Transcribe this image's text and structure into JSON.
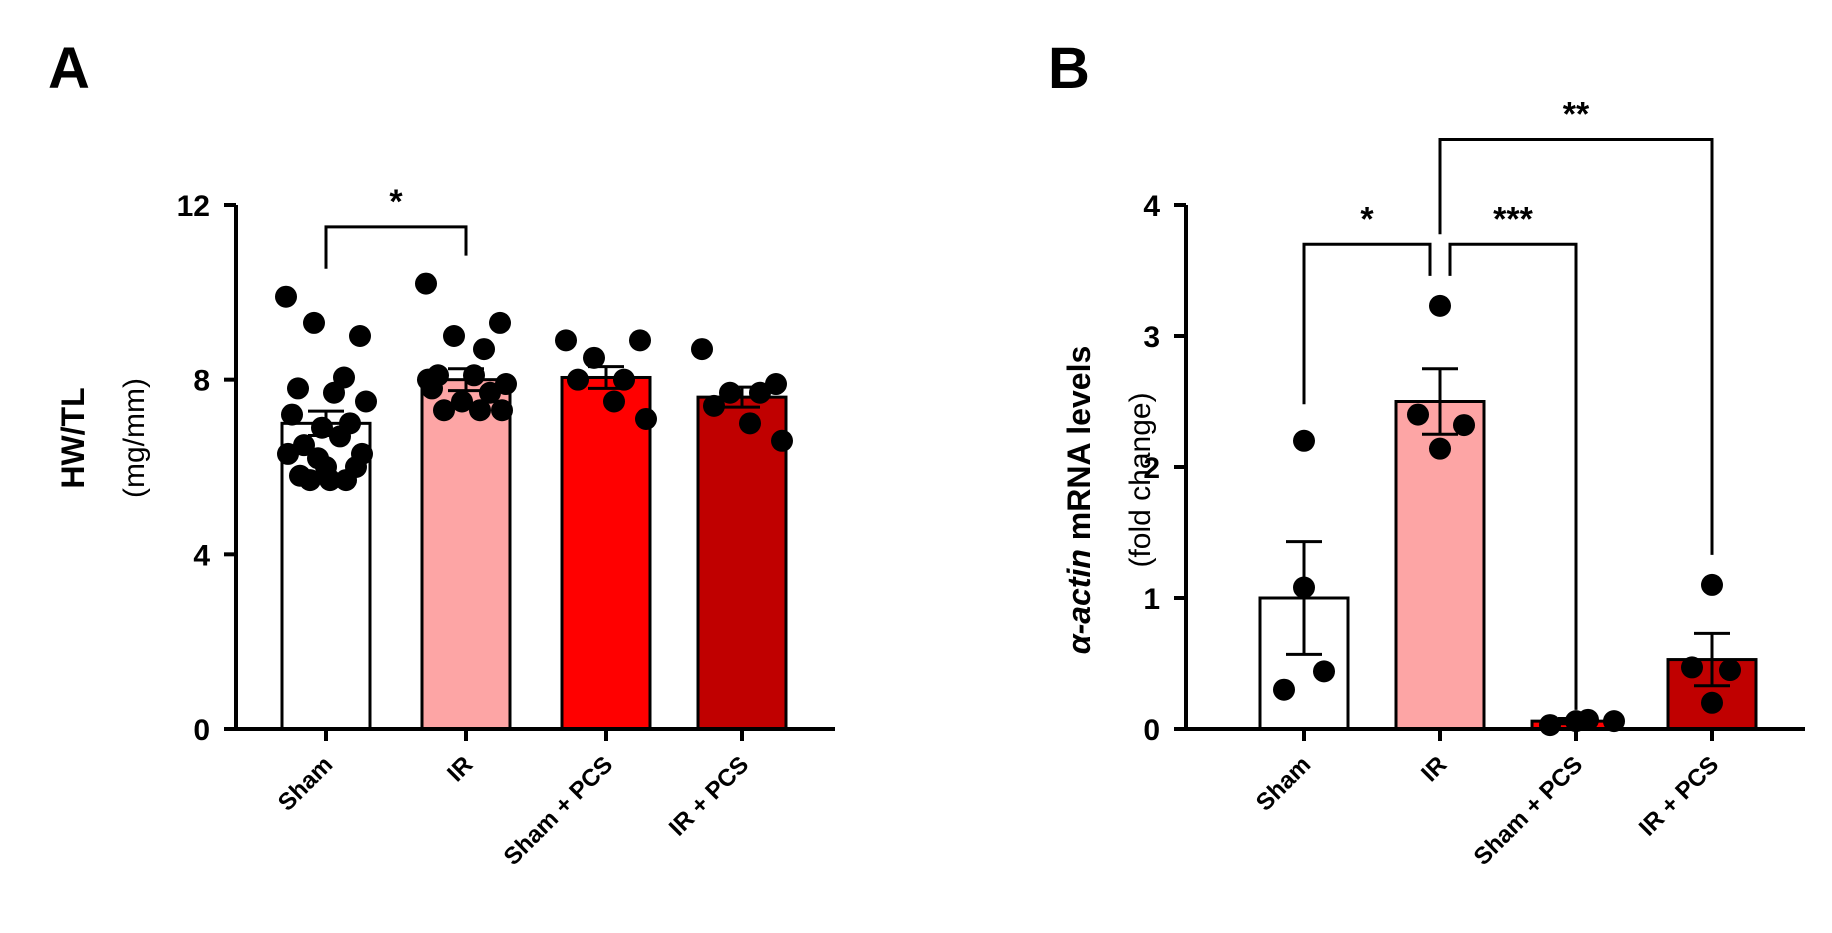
{
  "chart_data": [
    {
      "panel": "A",
      "type": "bar",
      "categories": [
        "Sham",
        "IR",
        "Sham + PCS",
        "IR + PCS"
      ],
      "values": [
        7.0,
        8.0,
        8.05,
        7.6
      ],
      "sem": [
        0.28,
        0.25,
        0.25,
        0.23
      ],
      "bar_colors": [
        "#ffffff",
        "#fda5a5",
        "#ff0000",
        "#c00000"
      ],
      "points": [
        [
          9.9,
          9.0,
          9.3,
          8.05,
          7.8,
          7.7,
          7.5,
          7.2,
          7.0,
          6.9,
          6.7,
          6.5,
          6.3,
          6.3,
          6.2,
          6.0,
          5.8,
          5.7,
          5.7,
          5.7,
          6.0
        ],
        [
          10.2,
          9.3,
          9.0,
          8.7,
          8.1,
          8.1,
          7.9,
          7.8,
          7.7,
          7.5,
          7.3,
          7.3,
          7.3,
          8.0
        ],
        [
          8.9,
          8.9,
          8.5,
          8.0,
          8.0,
          7.5,
          7.1
        ],
        [
          8.7,
          7.9,
          7.7,
          7.7,
          7.4,
          7.0,
          6.6
        ]
      ],
      "ylabel_bold": "HW/TL",
      "ylabel_unit": "(mg/mm)",
      "ylim": [
        0,
        12
      ],
      "yticks": [
        "0",
        "4",
        "8",
        "12"
      ],
      "ytick_values": [
        0,
        4,
        8,
        12
      ],
      "significance": [
        {
          "from": 0,
          "to": 1,
          "label": "*",
          "level": 11.5
        }
      ]
    },
    {
      "panel": "B",
      "type": "bar",
      "categories": [
        "Sham",
        "IR",
        "Sham + PCS",
        "IR + PCS"
      ],
      "values": [
        1.0,
        2.5,
        0.06,
        0.53
      ],
      "sem": [
        0.43,
        0.25,
        0.02,
        0.2
      ],
      "bar_colors": [
        "#ffffff",
        "#fda5a5",
        "#ff0000",
        "#c00000"
      ],
      "points": [
        [
          2.2,
          1.08,
          0.44,
          0.3
        ],
        [
          3.23,
          2.4,
          2.32,
          2.14
        ],
        [
          0.03,
          0.07,
          0.06,
          0.06
        ],
        [
          1.1,
          0.47,
          0.45,
          0.2
        ]
      ],
      "ylabel_italic": "α-actin",
      "ylabel_bold": " mRNA levels",
      "ylabel_unit": "(fold change)",
      "ylim": [
        0,
        4
      ],
      "yticks": [
        "0",
        "1",
        "2",
        "3",
        "4"
      ],
      "ytick_values": [
        0,
        1,
        2,
        3,
        4
      ],
      "significance": [
        {
          "from": 0,
          "to": 1,
          "label": "*",
          "level": 3.7
        },
        {
          "from": 1,
          "to": 2,
          "label": "***",
          "level": 3.7
        },
        {
          "from": 1,
          "to": 3,
          "label": "**",
          "level": 4.5
        }
      ]
    }
  ],
  "panel_labels": [
    "A",
    "B"
  ]
}
